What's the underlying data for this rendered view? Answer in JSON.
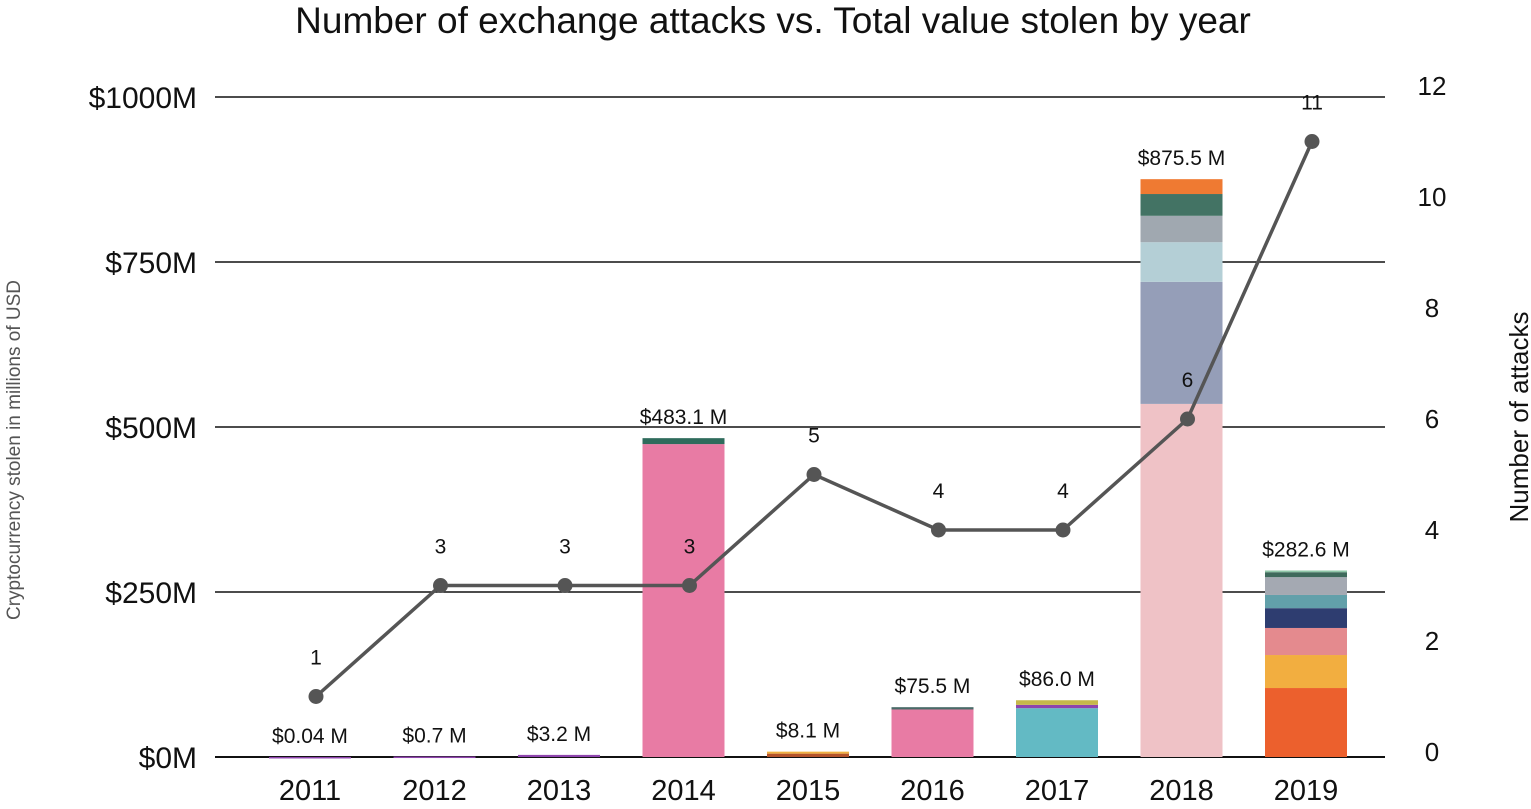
{
  "chart_data": {
    "type": "bar",
    "title": "Number of exchange attacks vs. Total value stolen by year",
    "ylabel": "Cryptocurrency stolen in millions of USD",
    "y2label": "Number of attacks",
    "ylim": [
      0,
      1000
    ],
    "y2lim": [
      0,
      12
    ],
    "grid": true,
    "y_ticks": [
      "$0M",
      "$250M",
      "$500M",
      "$750M",
      "$1000M"
    ],
    "y_tick_values": [
      0,
      250,
      500,
      750,
      1000
    ],
    "y2_ticks": [
      "0",
      "2",
      "4",
      "6",
      "8",
      "10",
      "12"
    ],
    "y2_tick_values": [
      0,
      2,
      4,
      6,
      8,
      10,
      12
    ],
    "categories": [
      "2011",
      "2012",
      "2013",
      "2014",
      "2015",
      "2016",
      "2017",
      "2018",
      "2019"
    ],
    "totals": [
      0.04,
      0.7,
      3.2,
      483.1,
      8.1,
      75.5,
      86.0,
      875.5,
      282.6
    ],
    "total_labels": [
      "$0.04 M",
      "$0.7 M",
      "$3.2 M",
      "$483.1 M",
      "$8.1 M",
      "$75.5 M",
      "$86.0 M",
      "$875.5 M",
      "$282.6 M"
    ],
    "stacks": [
      [
        {
          "value": 0.04,
          "color": "#8e44ad"
        }
      ],
      [
        {
          "value": 0.7,
          "color": "#8e44ad"
        }
      ],
      [
        {
          "value": 3.2,
          "color": "#8e44ad"
        }
      ],
      [
        {
          "value": 474.1,
          "color": "#e87ba4"
        },
        {
          "value": 9.0,
          "color": "#2f6b5c"
        }
      ],
      [
        {
          "value": 5.1,
          "color": "#b5532a"
        },
        {
          "value": 3.0,
          "color": "#f0b040"
        }
      ],
      [
        {
          "value": 72.0,
          "color": "#e87ba4"
        },
        {
          "value": 3.5,
          "color": "#4a6b68"
        }
      ],
      [
        {
          "value": 74.0,
          "color": "#63bac4"
        },
        {
          "value": 5.0,
          "color": "#8e44ad"
        },
        {
          "value": 7.0,
          "color": "#c6b84a"
        }
      ],
      [
        {
          "value": 535.0,
          "color": "#efc2c6"
        },
        {
          "value": 185.0,
          "color": "#959eb8"
        },
        {
          "value": 60.0,
          "color": "#b4cfd6"
        },
        {
          "value": 40.0,
          "color": "#a0a8b0"
        },
        {
          "value": 33.0,
          "color": "#437364"
        },
        {
          "value": 22.5,
          "color": "#ef7a32"
        }
      ],
      [
        {
          "value": 104.5,
          "color": "#ec602d"
        },
        {
          "value": 50.0,
          "color": "#f2ae40"
        },
        {
          "value": 41.0,
          "color": "#e48a8e"
        },
        {
          "value": 30.0,
          "color": "#2e3d70"
        },
        {
          "value": 20.0,
          "color": "#62a0aa"
        },
        {
          "value": 27.0,
          "color": "#a4a9b2"
        },
        {
          "value": 7.5,
          "color": "#3f6a5c"
        },
        {
          "value": 2.6,
          "color": "#8fc7a8"
        }
      ]
    ],
    "series": [
      {
        "type": "line",
        "axis": "right",
        "values": [
          1,
          3,
          3,
          3,
          5,
          4,
          4,
          6,
          11
        ],
        "labels": [
          "1",
          "3",
          "3",
          "3",
          "5",
          "4",
          "4",
          "6",
          "11"
        ],
        "color": "#555555"
      }
    ]
  }
}
